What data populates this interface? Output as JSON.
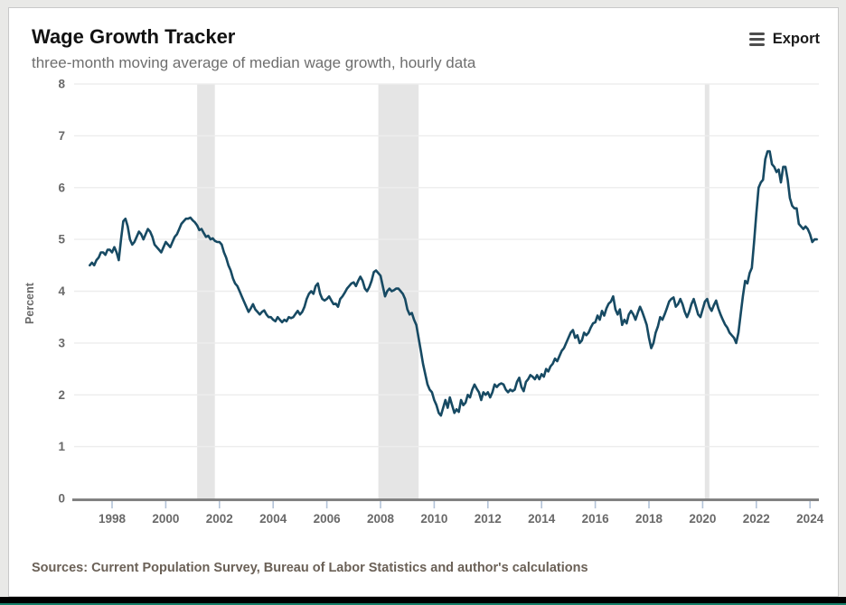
{
  "header": {
    "title": "Wage Growth Tracker",
    "subtitle": "three-month moving average of median wage growth, hourly data",
    "export_label": "Export",
    "export_icon": "hamburger-menu-icon"
  },
  "footer": {
    "source": "Sources: Current Population Survey, Bureau of Labor Statistics and author's calculations"
  },
  "colors": {
    "line": "#174a63",
    "recession_band": "#e5e5e5",
    "gridline": "#ededed",
    "axis": "#828282",
    "tick": "#b3c3d8",
    "bottom_bar": "#000000",
    "bottom_accent": "#17806a"
  },
  "chart_data": {
    "type": "line",
    "title": "Wage Growth Tracker",
    "subtitle": "three-month moving average of median wage growth, hourly data",
    "xlabel": "",
    "ylabel": "Percent",
    "ylim": [
      0,
      8
    ],
    "xlim": [
      1996.5,
      2024.35
    ],
    "grid": true,
    "legend": "none",
    "y_ticks": [
      0,
      1,
      2,
      3,
      4,
      5,
      6,
      7,
      8
    ],
    "x_ticks": [
      1998,
      2000,
      2002,
      2004,
      2006,
      2008,
      2010,
      2012,
      2014,
      2016,
      2018,
      2020,
      2022,
      2024
    ],
    "recession_bands": [
      [
        2001.17,
        2001.83
      ],
      [
        2007.92,
        2009.42
      ],
      [
        2020.08,
        2020.25
      ]
    ],
    "series": [
      {
        "name": "Median wage growth, 3-month moving average (percent)",
        "start_year": 1997,
        "start_month": 3,
        "freq": "monthly",
        "values": [
          4.5,
          4.55,
          4.5,
          4.6,
          4.65,
          4.75,
          4.75,
          4.7,
          4.8,
          4.8,
          4.75,
          4.85,
          4.75,
          4.6,
          5.0,
          5.35,
          5.4,
          5.25,
          5.0,
          4.9,
          4.95,
          5.05,
          5.15,
          5.1,
          5.0,
          5.1,
          5.2,
          5.15,
          5.05,
          4.9,
          4.85,
          4.8,
          4.75,
          4.85,
          4.95,
          4.9,
          4.85,
          4.95,
          5.05,
          5.1,
          5.2,
          5.3,
          5.35,
          5.4,
          5.4,
          5.42,
          5.37,
          5.33,
          5.27,
          5.18,
          5.2,
          5.12,
          5.05,
          5.07,
          5.0,
          5.02,
          4.97,
          4.95,
          4.95,
          4.9,
          4.75,
          4.65,
          4.5,
          4.4,
          4.25,
          4.15,
          4.1,
          4.0,
          3.9,
          3.8,
          3.7,
          3.6,
          3.67,
          3.75,
          3.65,
          3.6,
          3.55,
          3.6,
          3.63,
          3.55,
          3.5,
          3.5,
          3.45,
          3.42,
          3.5,
          3.45,
          3.4,
          3.45,
          3.42,
          3.5,
          3.48,
          3.5,
          3.56,
          3.62,
          3.55,
          3.6,
          3.7,
          3.85,
          3.95,
          4.0,
          3.95,
          4.1,
          4.15,
          3.95,
          3.85,
          3.82,
          3.85,
          3.9,
          3.82,
          3.75,
          3.76,
          3.7,
          3.85,
          3.9,
          3.97,
          4.05,
          4.1,
          4.15,
          4.17,
          4.1,
          4.2,
          4.28,
          4.2,
          4.05,
          4.0,
          4.08,
          4.2,
          4.37,
          4.4,
          4.35,
          4.3,
          4.1,
          3.9,
          4.0,
          4.05,
          4.0,
          4.02,
          4.05,
          4.05,
          4.0,
          3.95,
          3.85,
          3.65,
          3.55,
          3.58,
          3.45,
          3.35,
          3.1,
          2.85,
          2.6,
          2.4,
          2.2,
          2.1,
          2.05,
          1.9,
          1.8,
          1.65,
          1.6,
          1.75,
          1.9,
          1.75,
          1.95,
          1.8,
          1.65,
          1.72,
          1.67,
          1.9,
          1.8,
          1.85,
          2.0,
          1.95,
          2.1,
          2.2,
          2.12,
          2.05,
          1.9,
          2.05,
          2.0,
          2.05,
          1.95,
          2.05,
          2.2,
          2.15,
          2.2,
          2.22,
          2.2,
          2.1,
          2.05,
          2.1,
          2.07,
          2.1,
          2.25,
          2.33,
          2.15,
          2.07,
          2.25,
          2.3,
          2.38,
          2.35,
          2.3,
          2.38,
          2.3,
          2.4,
          2.35,
          2.5,
          2.45,
          2.55,
          2.6,
          2.7,
          2.65,
          2.75,
          2.85,
          2.9,
          3.0,
          3.1,
          3.2,
          3.25,
          3.1,
          3.15,
          3.0,
          3.05,
          3.2,
          3.15,
          3.2,
          3.3,
          3.38,
          3.4,
          3.53,
          3.45,
          3.62,
          3.53,
          3.67,
          3.76,
          3.8,
          3.9,
          3.65,
          3.55,
          3.65,
          3.35,
          3.45,
          3.38,
          3.55,
          3.62,
          3.55,
          3.45,
          3.58,
          3.7,
          3.6,
          3.48,
          3.35,
          3.1,
          2.9,
          3.0,
          3.2,
          3.32,
          3.5,
          3.45,
          3.55,
          3.67,
          3.8,
          3.85,
          3.88,
          3.7,
          3.75,
          3.85,
          3.75,
          3.6,
          3.5,
          3.6,
          3.75,
          3.85,
          3.7,
          3.55,
          3.5,
          3.65,
          3.8,
          3.85,
          3.7,
          3.62,
          3.73,
          3.82,
          3.67,
          3.55,
          3.45,
          3.36,
          3.3,
          3.2,
          3.15,
          3.1,
          3.0,
          3.2,
          3.56,
          3.9,
          4.2,
          4.15,
          4.35,
          4.45,
          4.95,
          5.5,
          6.0,
          6.1,
          6.15,
          6.55,
          6.7,
          6.7,
          6.45,
          6.4,
          6.3,
          6.35,
          6.1,
          6.4,
          6.4,
          6.15,
          5.8,
          5.65,
          5.6,
          5.6,
          5.3,
          5.25,
          5.2,
          5.25,
          5.2,
          5.1,
          4.95,
          5.0,
          5.0
        ]
      }
    ]
  }
}
